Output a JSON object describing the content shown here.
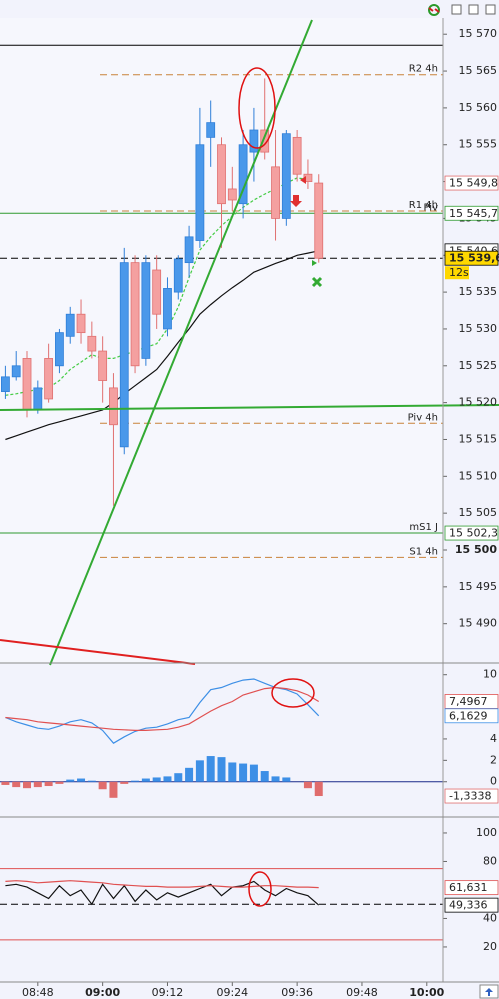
{
  "chart_data": [
    {
      "type": "candlestick",
      "x": [
        "08:42",
        "08:44",
        "08:46",
        "08:48",
        "08:50",
        "08:52",
        "08:54",
        "08:56",
        "08:58",
        "09:00",
        "09:02",
        "09:04",
        "09:06",
        "09:08",
        "09:10",
        "09:12",
        "09:14",
        "09:16",
        "09:18",
        "09:20",
        "09:22",
        "09:24",
        "09:26",
        "09:28",
        "09:30",
        "09:32",
        "09:34",
        "09:36",
        "09:38",
        "09:40"
      ],
      "xlim": [
        "08:41",
        "10:03"
      ],
      "open": [
        15521.5,
        15523.5,
        15526,
        15519,
        15526,
        15525,
        15529,
        15532,
        15529,
        15527,
        15522,
        15514,
        15539,
        15526,
        15538,
        15530,
        15535,
        15539,
        15542,
        15556,
        15555,
        15549,
        15547,
        15554,
        15557,
        15552,
        15545,
        15556,
        15551,
        15549.8
      ],
      "high": [
        15525,
        15527,
        15527,
        15523,
        15528,
        15530,
        15533,
        15534,
        15531,
        15529,
        15524,
        15541,
        15540,
        15540,
        15540,
        15537,
        15540,
        15544,
        15560,
        15561,
        15556,
        15552,
        15557,
        15560,
        15564,
        15557,
        15557,
        15557,
        15553,
        15551
      ],
      "low": [
        15520.5,
        15523,
        15518,
        15518.5,
        15520,
        15524,
        15528,
        15528,
        15526,
        15520,
        15506,
        15513,
        15524,
        15525,
        15530,
        15529,
        15534,
        15537,
        15541,
        15552,
        15541,
        15546,
        15545,
        15550,
        15553,
        15542,
        15544,
        15550,
        15549,
        15539
      ],
      "close": [
        15523.5,
        15525,
        15519,
        15522,
        15520.5,
        15529.5,
        15532,
        15529.5,
        15527,
        15523,
        15517,
        15539,
        15525,
        15539,
        15532,
        15535.5,
        15539.5,
        15542.5,
        15555,
        15558,
        15547,
        15547.5,
        15555,
        15557,
        15554,
        15545,
        15556.5,
        15551,
        15550,
        15539.6
      ],
      "up_color": "#4a98ea",
      "down_color": "#f4a0a0",
      "series": [
        {
          "color": "#111111",
          "style": "solid",
          "values": [
            15515,
            15515.5,
            15516,
            15516.5,
            15517,
            15517.4,
            15517.8,
            15518.2,
            15518.6,
            15519,
            15520,
            15521.2,
            15522.3,
            15523.4,
            15524.5,
            15526.3,
            15528.2,
            15530,
            15532,
            15533.3,
            15534.5,
            15535.6,
            15536.6,
            15537.7,
            15538.3,
            15538.9,
            15539.4,
            15540,
            15540.3,
            15540.6
          ]
        },
        {
          "color": "#44cc44",
          "style": "dashed",
          "values": [
            15521,
            15521.2,
            15521.5,
            15521.8,
            15522,
            15523,
            15524.5,
            15525.5,
            15526.5,
            15526,
            15526,
            15526.5,
            15527,
            15527.5,
            15528,
            15530,
            15533,
            15537,
            15540.7,
            15542.5,
            15544,
            15545.3,
            15546.5,
            15547.5,
            15548.3,
            15549,
            15549.8,
            15550.5,
            15550.3,
            null
          ]
        }
      ],
      "ylim": [
        15484.8,
        15572.2
      ],
      "yticks": [
        {
          "value": 15490,
          "label": "15 490"
        },
        {
          "value": 15495,
          "label": "15 495"
        },
        {
          "value": 15500,
          "label": "15 500"
        },
        {
          "value": 15505,
          "label": "15 505"
        },
        {
          "value": 15510,
          "label": "15 510"
        },
        {
          "value": 15515,
          "label": "15 515"
        },
        {
          "value": 15520,
          "label": "15 520"
        },
        {
          "value": 15525,
          "label": "15 525"
        },
        {
          "value": 15530,
          "label": "15 530"
        },
        {
          "value": 15535,
          "label": "15 535"
        },
        {
          "value": 15540,
          "label": "15 540"
        },
        {
          "value": 15545,
          "label": "15 545"
        },
        {
          "value": 15550,
          "label": "15 550"
        },
        {
          "value": 15555,
          "label": "15 555"
        },
        {
          "value": 15560,
          "label": "15 560"
        },
        {
          "value": 15565,
          "label": "15 565"
        },
        {
          "value": 15570,
          "label": "15 570"
        }
      ],
      "levels": [
        {
          "value": 15568.5,
          "color": "#000000",
          "style": "solid"
        },
        {
          "name": "R2 4h",
          "value": 15564.5,
          "color": "#c8823a",
          "style": "dashed"
        },
        {
          "name": "R1 4h",
          "value": 15546,
          "color": "#c8823a",
          "style": "dashed"
        },
        {
          "name": "Piv",
          "value": 15545.7,
          "color": "#2e9a2e",
          "style": "solid"
        },
        {
          "name": "Piv 4h",
          "value": 15517.2,
          "color": "#c8823a",
          "style": "dashed"
        },
        {
          "name": "mS1 J",
          "value": 15502.3,
          "color": "#2e9a2e",
          "style": "solid"
        },
        {
          "name": "S1 4h",
          "value": 15499,
          "color": "#c8823a",
          "style": "dashed"
        },
        {
          "value": 15539.6,
          "color": "#000000",
          "style": "dashed"
        }
      ],
      "markers": [
        {
          "value": 15549.8,
          "label": "15 549,8",
          "color": "#e06c6c",
          "fill": "#ffffff"
        },
        {
          "value": 15545.7,
          "label": "15 545,7",
          "color": "#2e9a2e",
          "fill": "#ffffff"
        },
        {
          "value": 15540.6,
          "label": "15 540,6",
          "color": "#000000",
          "fill": "#ffffff"
        },
        {
          "value": 15539.6,
          "label": "15 539,6",
          "color": "#000000",
          "fill": "#ffd800",
          "note": "12s"
        },
        {
          "value": 15502.3,
          "label": "15 502,3",
          "color": "#2e9a2e",
          "fill": "#ffffff"
        }
      ]
    },
    {
      "type": "macd",
      "histogram": {
        "up_color": "#3d8fe6",
        "down_color": "#e06c6c",
        "values": [
          -0.3,
          -0.5,
          -0.6,
          -0.5,
          -0.4,
          -0.2,
          0.2,
          0.3,
          0.1,
          -0.7,
          -1.5,
          -0.2,
          0.1,
          0.3,
          0.4,
          0.5,
          0.8,
          1.3,
          2.0,
          2.4,
          2.3,
          1.8,
          1.7,
          1.6,
          1.0,
          0.5,
          0.4,
          0,
          -0.6,
          -1.3338
        ]
      },
      "series": [
        {
          "color": "#3d8fe6",
          "values": [
            6.0,
            5.6,
            5.3,
            5.0,
            4.9,
            5.2,
            5.6,
            5.8,
            5.5,
            4.8,
            3.6,
            4.2,
            4.7,
            5.0,
            5.1,
            5.4,
            5.8,
            6.0,
            7.4,
            8.6,
            8.8,
            9.2,
            9.5,
            9.6,
            9.2,
            8.8,
            8.6,
            8.2,
            7.2,
            6.1629
          ]
        },
        {
          "color": "#e05050",
          "values": [
            6.0,
            5.9,
            5.8,
            5.6,
            5.5,
            5.4,
            5.3,
            5.2,
            5.1,
            5.0,
            4.9,
            4.85,
            4.8,
            4.8,
            4.85,
            4.9,
            5.1,
            5.4,
            6.0,
            6.6,
            7.1,
            7.5,
            8.1,
            8.4,
            8.7,
            8.8,
            8.7,
            8.5,
            8.1,
            7.4967
          ]
        }
      ],
      "ylim": [
        -3.2,
        11
      ],
      "yticks": [
        0,
        2,
        4,
        10
      ],
      "levels": [
        {
          "value": 0,
          "color": "#1a2a8a",
          "style": "solid"
        }
      ],
      "markers": [
        {
          "value": 7.4967,
          "label": "7,4967",
          "color": "#e05050",
          "fill": "#ffffff"
        },
        {
          "value": 6.1629,
          "label": "6,1629",
          "color": "#3d8fe6",
          "fill": "#ffffff"
        },
        {
          "value": -1.3338,
          "label": "-1,3338",
          "color": "#e06c6c",
          "fill": "#ffffff"
        }
      ]
    },
    {
      "type": "line",
      "series": [
        {
          "color": "#111111",
          "values": [
            63,
            64,
            62,
            58,
            54,
            63,
            56,
            60,
            50,
            64,
            54,
            63,
            52,
            60,
            53,
            58,
            55,
            58,
            61,
            64,
            56,
            62,
            63,
            66,
            60,
            56,
            61,
            58,
            56,
            49.336
          ]
        },
        {
          "color": "#e05050",
          "values": [
            66,
            66.5,
            66,
            65,
            65.5,
            66,
            66.5,
            66,
            65.5,
            65,
            64,
            63.5,
            63,
            62.5,
            62.5,
            62,
            62,
            62,
            62.5,
            63,
            62.5,
            62,
            62,
            62.5,
            63,
            63,
            62.5,
            62,
            62,
            61.631
          ]
        }
      ],
      "ylim": [
        -4.6,
        110.5
      ],
      "yticks": [
        20,
        40,
        80,
        100
      ],
      "levels": [
        {
          "value": 75,
          "color": "#e05050",
          "style": "solid"
        },
        {
          "value": 50,
          "color": "#000000",
          "style": "dashed"
        },
        {
          "value": 25,
          "color": "#e05050",
          "style": "solid"
        }
      ],
      "markers": [
        {
          "value": 61.631,
          "label": "61,631",
          "color": "#e05050",
          "fill": "#ffffff"
        },
        {
          "value": 49.336,
          "label": "49,336",
          "color": "#000000",
          "fill": "#ffffff"
        }
      ],
      "xticks": [
        "08:48",
        "09:00",
        "09:12",
        "09:24",
        "09:36",
        "09:48",
        "10:00"
      ]
    }
  ]
}
